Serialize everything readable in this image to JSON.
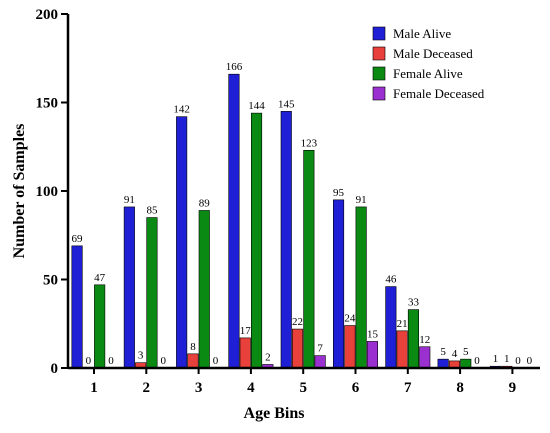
{
  "chart_data": {
    "type": "bar",
    "title": "",
    "xlabel": "Age Bins",
    "ylabel": "Number of Samples",
    "ylim": [
      0,
      200
    ],
    "yticks": [
      0,
      50,
      100,
      150,
      200
    ],
    "categories": [
      "1",
      "2",
      "3",
      "4",
      "5",
      "6",
      "7",
      "8",
      "9"
    ],
    "legend_position": "top-right",
    "series": [
      {
        "name": "Male Alive",
        "color": "#1f1fd6",
        "values": [
          69,
          91,
          142,
          166,
          145,
          95,
          46,
          5,
          1
        ]
      },
      {
        "name": "Male Deceased",
        "color": "#e8403a",
        "values": [
          0,
          3,
          8,
          17,
          22,
          24,
          21,
          4,
          1
        ]
      },
      {
        "name": "Female Alive",
        "color": "#0a8a12",
        "values": [
          47,
          85,
          89,
          144,
          123,
          91,
          33,
          5,
          0
        ]
      },
      {
        "name": "Female Deceased",
        "color": "#9b30d0",
        "values": [
          0,
          0,
          0,
          2,
          7,
          15,
          12,
          0,
          0
        ]
      }
    ]
  }
}
